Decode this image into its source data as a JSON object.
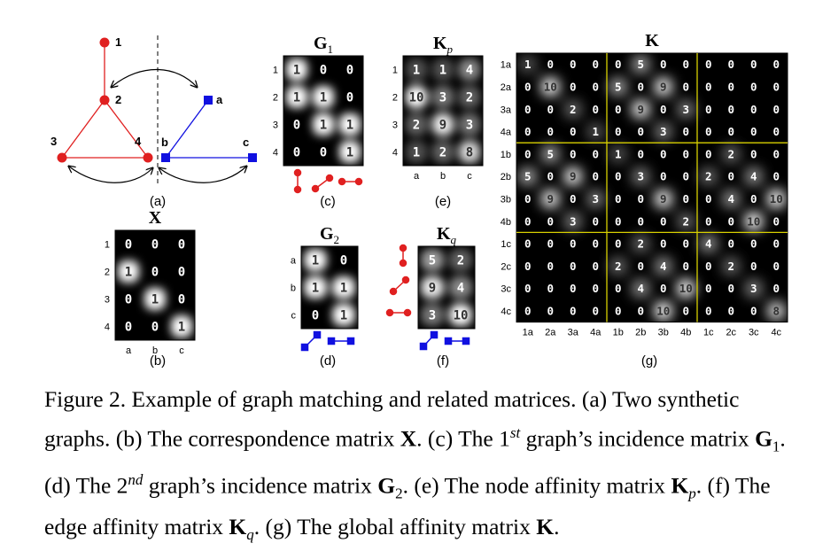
{
  "panels": {
    "a": "(a)",
    "b": "(b)",
    "c": "(c)",
    "d": "(d)",
    "e": "(e)",
    "f": "(f)",
    "g": "(g)"
  },
  "graph1": {
    "nodes": [
      "1",
      "2",
      "3",
      "4"
    ],
    "color": "#e02020"
  },
  "graph2": {
    "nodes": [
      "a",
      "b",
      "c"
    ],
    "color": "#1010e0"
  },
  "X": {
    "title": "X",
    "rows": [
      "1",
      "2",
      "3",
      "4"
    ],
    "cols": [
      "a",
      "b",
      "c"
    ],
    "values": [
      [
        "0",
        "0",
        "0"
      ],
      [
        "1",
        "0",
        "0"
      ],
      [
        "0",
        "1",
        "0"
      ],
      [
        "0",
        "0",
        "1"
      ]
    ]
  },
  "G1": {
    "title": "G",
    "sub": "1",
    "rows": [
      "1",
      "2",
      "3",
      "4"
    ],
    "values": [
      [
        "1",
        "0",
        "0"
      ],
      [
        "1",
        "1",
        "0"
      ],
      [
        "0",
        "1",
        "1"
      ],
      [
        "0",
        "0",
        "1"
      ]
    ]
  },
  "G2": {
    "title": "G",
    "sub": "2",
    "rows": [
      "a",
      "b",
      "c"
    ],
    "values": [
      [
        "1",
        "0"
      ],
      [
        "1",
        "1"
      ],
      [
        "0",
        "1"
      ]
    ]
  },
  "Kp": {
    "title": "K",
    "sub": "p",
    "rows": [
      "1",
      "2",
      "3",
      "4"
    ],
    "cols": [
      "a",
      "b",
      "c"
    ],
    "values": [
      [
        "1",
        "1",
        "4"
      ],
      [
        "10",
        "3",
        "2"
      ],
      [
        "2",
        "9",
        "3"
      ],
      [
        "1",
        "2",
        "8"
      ]
    ]
  },
  "Kq": {
    "title": "K",
    "sub": "q",
    "values": [
      [
        "5",
        "2"
      ],
      [
        "9",
        "4"
      ],
      [
        "3",
        "10"
      ]
    ]
  },
  "K": {
    "title": "K",
    "labels": [
      "1a",
      "2a",
      "3a",
      "4a",
      "1b",
      "2b",
      "3b",
      "4b",
      "1c",
      "2c",
      "3c",
      "4c"
    ],
    "values": [
      [
        "1",
        "0",
        "0",
        "0",
        "0",
        "5",
        "0",
        "0",
        "0",
        "0",
        "0",
        "0"
      ],
      [
        "0",
        "10",
        "0",
        "0",
        "5",
        "0",
        "9",
        "0",
        "0",
        "0",
        "0",
        "0"
      ],
      [
        "0",
        "0",
        "2",
        "0",
        "0",
        "9",
        "0",
        "3",
        "0",
        "0",
        "0",
        "0"
      ],
      [
        "0",
        "0",
        "0",
        "1",
        "0",
        "0",
        "3",
        "0",
        "0",
        "0",
        "0",
        "0"
      ],
      [
        "0",
        "5",
        "0",
        "0",
        "1",
        "0",
        "0",
        "0",
        "0",
        "2",
        "0",
        "0"
      ],
      [
        "5",
        "0",
        "9",
        "0",
        "0",
        "3",
        "0",
        "0",
        "2",
        "0",
        "4",
        "0"
      ],
      [
        "0",
        "9",
        "0",
        "3",
        "0",
        "0",
        "9",
        "0",
        "0",
        "4",
        "0",
        "10"
      ],
      [
        "0",
        "0",
        "3",
        "0",
        "0",
        "0",
        "0",
        "2",
        "0",
        "0",
        "10",
        "0"
      ],
      [
        "0",
        "0",
        "0",
        "0",
        "0",
        "2",
        "0",
        "0",
        "4",
        "0",
        "0",
        "0"
      ],
      [
        "0",
        "0",
        "0",
        "0",
        "2",
        "0",
        "4",
        "0",
        "0",
        "2",
        "0",
        "0"
      ],
      [
        "0",
        "0",
        "0",
        "0",
        "0",
        "4",
        "0",
        "10",
        "0",
        "0",
        "3",
        "0"
      ],
      [
        "0",
        "0",
        "0",
        "0",
        "0",
        "0",
        "10",
        "0",
        "0",
        "0",
        "0",
        "8"
      ]
    ]
  },
  "caption": {
    "fig": "Figure 2.",
    "t1": " Example of graph matching and related matrices. (a) Two synthetic graphs. (b) The correspondence matrix ",
    "X": "X",
    "t2": ". (c) The 1",
    "st": "st",
    "t3": " graph’s incidence matrix ",
    "G": "G",
    "one": "1",
    "t4": ". (d) The 2",
    "nd": "nd",
    "t5": " graph’s incidence matrix ",
    "G2": "G",
    "two": "2",
    "t6": ". (e) The node affinity matrix ",
    "Kp": "K",
    "p": "p",
    "t7": ". (f) The edge affinity matrix ",
    "Kq": "K",
    "q": "q",
    "t8": ". (g) The global affinity matrix ",
    "K": "K",
    "t9": "."
  }
}
